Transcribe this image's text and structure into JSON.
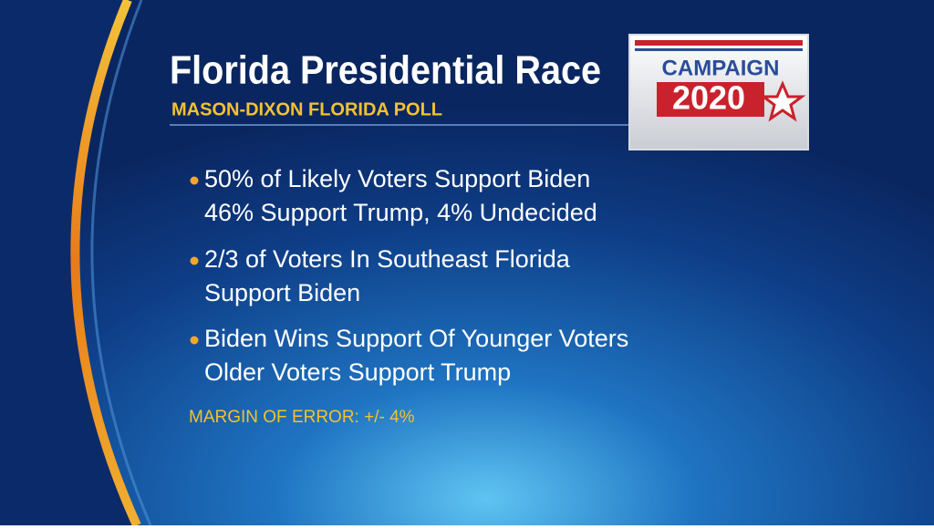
{
  "header": {
    "title": "Florida Presidential Race",
    "subtitle": "MASON-DIXON FLORIDA POLL"
  },
  "logo": {
    "top": "CAMPAIGN",
    "bottom": "2020"
  },
  "bullets": [
    {
      "lines": [
        "50% of Likely Voters Support Biden",
        "46% Support Trump, 4% Undecided"
      ]
    },
    {
      "lines": [
        "2/3 of Voters In Southeast Florida",
        "Support Biden"
      ]
    },
    {
      "lines": [
        "Biden Wins Support Of Younger Voters",
        "Older Voters Support Trump"
      ]
    }
  ],
  "footnote": "MARGIN OF ERROR: +/- 4%"
}
